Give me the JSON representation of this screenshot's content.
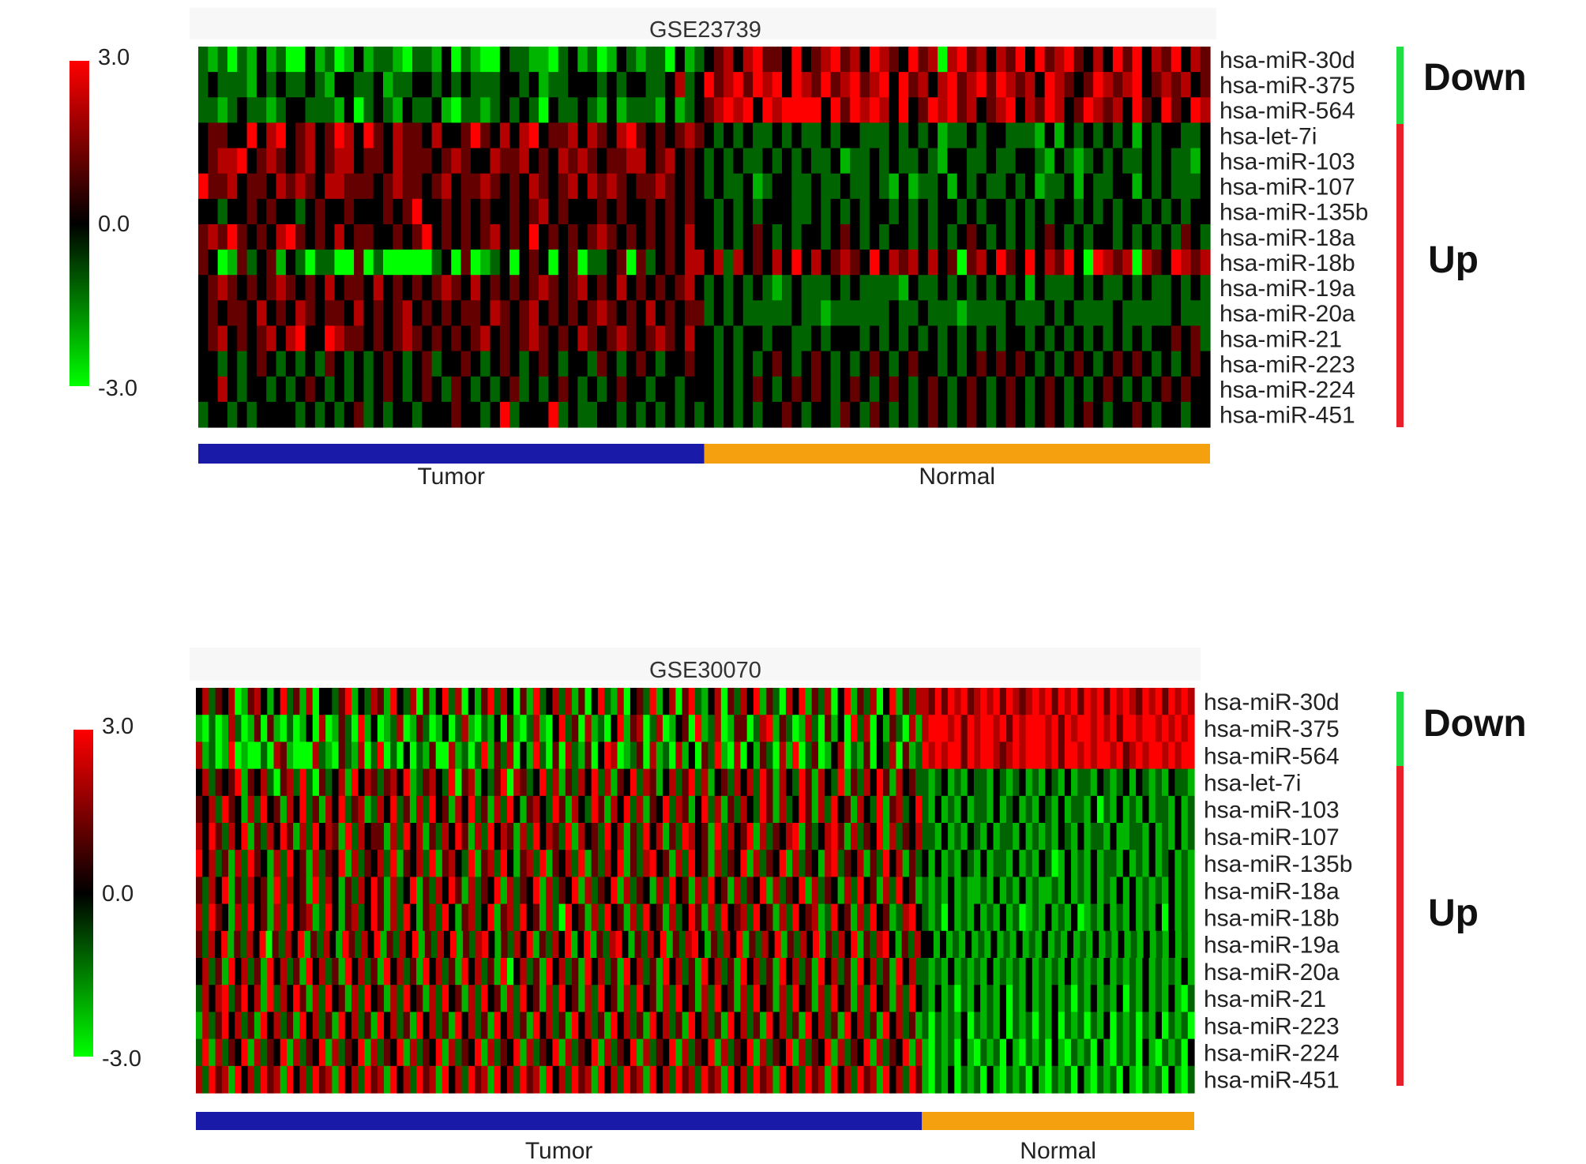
{
  "chart_data": [
    {
      "type": "heatmap",
      "title": "GSE23739",
      "rows": [
        "hsa-miR-30d",
        "hsa-miR-375",
        "hsa-miR-564",
        "hsa-let-7i",
        "hsa-miR-103",
        "hsa-miR-107",
        "hsa-miR-135b",
        "hsa-miR-18a",
        "hsa-miR-18b",
        "hsa-miR-19a",
        "hsa-miR-20a",
        "hsa-miR-21",
        "hsa-miR-223",
        "hsa-miR-224",
        "hsa-miR-451"
      ],
      "groups": [
        {
          "label": "Tumor",
          "color": "#1a1aa8"
        },
        {
          "label": "Normal",
          "color": "#f5a00f"
        }
      ],
      "row_groups": [
        {
          "label": "Down",
          "color": "#22dd44",
          "rows": 3
        },
        {
          "label": "Up",
          "color": "#e8202a",
          "rows": 12
        }
      ],
      "colorbar": {
        "max_label": "3.0",
        "mid_label": "0.0",
        "min_label": "-3.0",
        "min": -3,
        "max": 3,
        "low_color": "#00ff00",
        "mid_color": "#000000",
        "high_color": "#ff0000"
      },
      "value_encoding": "digit d => value d-3 (range -3..3)",
      "matrix": [
        {
          "tumor": "2120213120031201312210221302100322110231201321220312",
          "normal": "3453564436345645365436450564535463645643536463546354"
        },
        {
          "tumor": "2322213232232133223122332323222332312233323233223523",
          "normal": "6456465636546456456364535645646545365434654563454534"
        },
        {
          "tumor": "2212322123322213023213223102212323203223213122213123",
          "normal": "4565636566663646565363465645345635465346545364364365"
        },
        {
          "tumor": "3443363563453465364354435334643535634453543564343454",
          "normal": "3232322323223233222323231223233222131323232313233223"
        },
        {
          "tumor": "3455634543453455344354443454335445343545434455345343",
          "normal": "2323223232322312232322321332232233213212323223232213"
        },
        {
          "tumor": "6445344354543554443454434534454343543453545434454343",
          "normal": "2322312332232232232131223132322323122313223313232223"
        },
        {
          "tumor": "3323343433234334333434633434343343453433343433434343",
          "normal": "3232323332232323233232323323233232323323232332323233"
        },
        {
          "tumor": "4546434356434353443343463434345343634343454343434353",
          "normal": "3232343232332343232332323234323232343232332323232432"
        },
        {
          "tumor": "4301423413202200402000002304012303430340223404234355",
          "normal": "3525343536353454363545353404536436354630654505436545"
        },
        {
          "tumor": "3454343454343534435343434543534343454345343534343453",
          "normal": "2323232123222323222213223232323231322232322323223232"
        },
        {
          "tumor": "3434435343543443534345343434435434534343454343534344",
          "normal": "2323222223221222222322322212222322232322223222223222"
        },
        {
          "tumor": "3453434535633654434345434343453434543435434543454353",
          "normal": "3232332332232333232323232323232332323232323232334342"
        },
        {
          "tumor": "3323234323232432323432342334323432343233243234323343",
          "normal": "3232323432343232343234332323434343232343234343232343"
        },
        {
          "tumor": "3353233232343232323432343243232342323432323433233233",
          "normal": "3232343234343234323432343234323432343232343232343433"
        },
        {
          "tumor": "2332323333232323423233233343323623336232233232323232",
          "normal": "3232323343233243243232343234323432343234323343233233"
        }
      ]
    },
    {
      "type": "heatmap",
      "title": "GSE30070",
      "rows": [
        "hsa-miR-30d",
        "hsa-miR-375",
        "hsa-miR-564",
        "hsa-let-7i",
        "hsa-miR-103",
        "hsa-miR-107",
        "hsa-miR-135b",
        "hsa-miR-18a",
        "hsa-miR-18b",
        "hsa-miR-19a",
        "hsa-miR-20a",
        "hsa-miR-21",
        "hsa-miR-223",
        "hsa-miR-224",
        "hsa-miR-451"
      ],
      "groups": [
        {
          "label": "Tumor",
          "color": "#1a1aa8"
        },
        {
          "label": "Normal",
          "color": "#f5a00f"
        }
      ],
      "row_groups": [
        {
          "label": "Down",
          "color": "#22dd44",
          "rows": 3
        },
        {
          "label": "Up",
          "color": "#e8202a",
          "rows": 12
        }
      ],
      "colorbar": {
        "max_label": "3.0",
        "mid_label": "0.0",
        "min_label": "-3.0",
        "min": -3,
        "max": 3,
        "low_color": "#00ff00",
        "mid_color": "#000000",
        "high_color": "#ff0000"
      },
      "value_encoding": "digit d => value d-3 (range -3..3)",
      "matrix": [
        {
          "tumor": "3524350145313624150332461325416325041362503146253041623525140362150342613504621350425361420536142503614250361425",
          "normal": "546465645656465456564656465646565465646565"
        },
        {
          "tumor": "1020152014041020130501420613012501420130251021304102510362405120361450250134061250144025614201520413062503142051",
          "normal": "566656465665646566656465665656466566565656"
        },
        {
          "tumor": "5120160100205410005210421502602030214005120261425031620405214036501240512051304261050314205160240135021403250412",
          "normal": "656566465665456566656466565665645656656566"
        },
        {
          "tumor": "3524346143520452620423516354245361245326045132460542362514253625143625413524625134253526415326415326142536415342",
          "normal": "212312132213212312132131221321231321213221"
        },
        {
          "tumor": "4352643152634153624153624512536241526341536241526314532641532641536251436254136251425326415236415263415326145236",
          "normal": "213121312213123121321312213021312131221312"
        },
        {
          "tumor": "5364253614253641526354162534415263514253641526354152635426153426351426351426534162534615243561423564152436152435",
          "normal": "221312132131221312121321312213112213121312"
        },
        {
          "tumor": "6352415264315263415243615243526143526145326145263145261435261425361425634152634152436152436152431562435142635142",
          "normal": "313121321312213121320131213122131213123121"
        },
        {
          "tumor": "4253614253416253416253142536415236142536415243615243615243615243615243152634152634152436152436152431526341526341",
          "normal": "212131211213121312112131213121313121213121"
        },
        {
          "tumor": "5264315263415263451263145236415263145263145236145263415206341526341526341523641526345263415263451263415263412563",
          "normal": "212031213121312012131213012131213121303121"
        },
        {
          "tumor": "4253614253604253614253164253614253614253614256314253614253613614256314253614256314253614253614253614253614256314253",
          "normal": "313121312131213121312131213121312131213121"
        },
        {
          "tumor": "3524163524163524163524163524163524163524163524160352416352416352416352416352416352416352416352416352416352416352",
          "normal": "212131212131212131212131212131212131212131"
        },
        {
          "tumor": "2535624635162536415263415263415263415263415263415263415263415263415263415263415263415263415263415263415263415263",
          "normal": "213120213121302131213120213121302131213102"
        },
        {
          "tumor": "1524635241635241635241635241635241635241635241635241635241635241635241635241635241635241635241635241635241635241",
          "normal": "202121302121302120213021202130212021302120"
        },
        {
          "tumor": "2615243615243615243615243615243615243615243615243615243615243615243615243615243615243615243615243615243615243615",
          "normal": "102120310212031021203102120310212031021203"
        },
        {
          "tumor": "5264516352645163526451635264516352645163526451635264516352645163526451635264526451635264516352645163526451635264",
          "normal": "102130212031021203102120310212031021203102"
        }
      ]
    }
  ]
}
